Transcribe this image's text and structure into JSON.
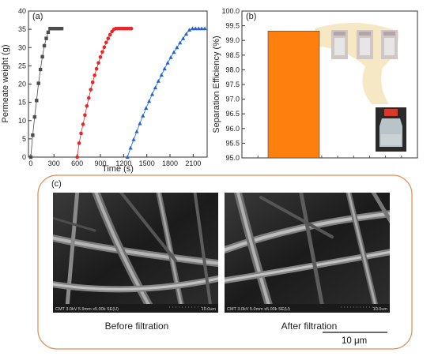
{
  "panel_a": {
    "label": "(a)",
    "xlabel": "Time (s)",
    "ylabel": "Permeate weight (g)",
    "x_ticks": [
      "0",
      "300",
      "600",
      "900",
      "1200",
      "1500",
      "1800",
      "2100"
    ],
    "y_ticks": [
      "0",
      "5",
      "10",
      "15",
      "20",
      "25",
      "30",
      "35",
      "40"
    ]
  },
  "panel_b": {
    "label": "(b)",
    "ylabel": "Separation Efficiency (%)",
    "y_ticks": [
      "95.0",
      "95.5",
      "96.0",
      "96.5",
      "97.0",
      "97.5",
      "98.0",
      "98.5",
      "99.0",
      "99.5",
      "100.0"
    ],
    "bar_color": "#ff7f0e"
  },
  "panel_c": {
    "label": "(c)",
    "before_caption": "Before filtration",
    "after_caption": "After filtration",
    "before_info": "CMT 3.0kV 5.9mm x5.00k SE(U)",
    "after_info": "CMT 3.0kV 5.0mm x5.00k SE(U)",
    "micro_scale": "10.0um",
    "scalebar_label": "10 μm",
    "frame_color": "#e08b52"
  },
  "chart_data": [
    {
      "type": "scatter",
      "xlim": [
        -30,
        2280
      ],
      "ylim": [
        0,
        40
      ],
      "series": [
        {
          "color": "#4d4d4d",
          "marker": "square",
          "x": [
            0,
            25,
            50,
            75,
            100,
            125,
            150,
            175,
            200,
            225,
            250,
            275,
            300,
            325,
            350,
            375,
            400
          ],
          "y": [
            0,
            6.0,
            11.0,
            15.5,
            20.2,
            24.0,
            27.5,
            30.5,
            32.5,
            34.2,
            35.2,
            35.2,
            35.2,
            35.2,
            35.2,
            35.2,
            35.2
          ]
        },
        {
          "color": "#e8262a",
          "marker": "circle",
          "x": [
            600,
            625,
            650,
            675,
            700,
            725,
            750,
            775,
            800,
            825,
            850,
            875,
            900,
            925,
            950,
            975,
            1000,
            1025,
            1050,
            1075,
            1100,
            1125,
            1150,
            1175,
            1200,
            1225,
            1250,
            1275,
            1300
          ],
          "y": [
            0,
            3.8,
            6.5,
            9.0,
            11.5,
            14.0,
            16.2,
            18.5,
            20.5,
            22.4,
            24.2,
            25.8,
            27.4,
            28.8,
            30.1,
            31.4,
            32.5,
            33.5,
            34.4,
            35.0,
            35.2,
            35.2,
            35.2,
            35.2,
            35.2,
            35.2,
            35.2,
            35.2,
            35.2
          ]
        },
        {
          "color": "#1f62d8",
          "marker": "triangle",
          "x": [
            1250,
            1290,
            1330,
            1370,
            1410,
            1450,
            1490,
            1530,
            1570,
            1610,
            1650,
            1690,
            1730,
            1770,
            1810,
            1850,
            1890,
            1930,
            1970,
            2010,
            2050,
            2090,
            2130,
            2170,
            2210,
            2250
          ],
          "y": [
            0,
            2.5,
            4.8,
            7.0,
            9.2,
            11.3,
            13.4,
            15.3,
            17.2,
            19.0,
            20.8,
            22.5,
            24.2,
            25.8,
            27.3,
            28.7,
            30.0,
            31.3,
            32.5,
            33.7,
            34.8,
            35.2,
            35.2,
            35.2,
            35.2,
            35.2
          ]
        }
      ]
    },
    {
      "type": "bar",
      "values": [
        99.32
      ],
      "ylim": [
        95.0,
        100.0
      ]
    }
  ]
}
